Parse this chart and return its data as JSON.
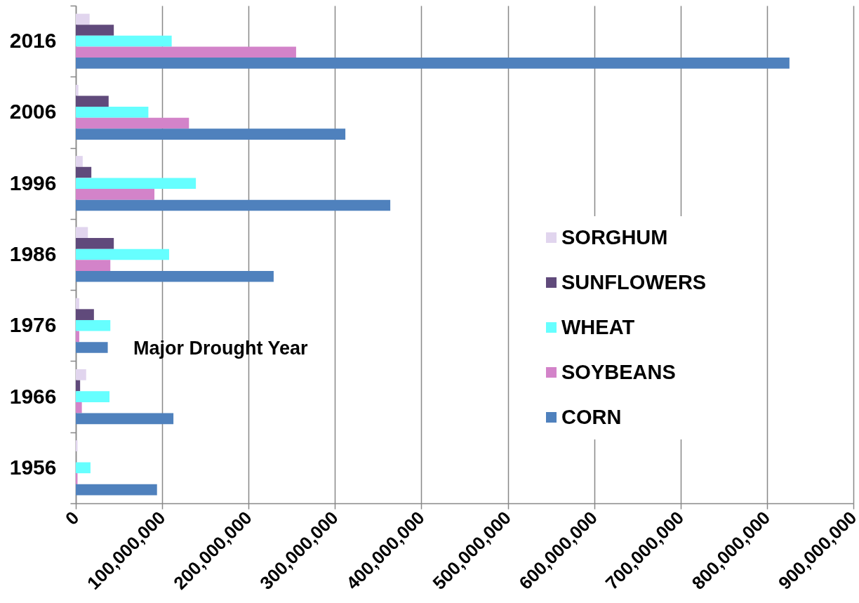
{
  "chart_data": {
    "type": "bar",
    "orientation": "horizontal",
    "categories": [
      "2016",
      "2006",
      "1996",
      "1986",
      "1976",
      "1966",
      "1956"
    ],
    "series": [
      {
        "name": "SORGHUM",
        "color": "#e1d5ee",
        "values": [
          16000000,
          3000000,
          8000000,
          14000000,
          4000000,
          12000000,
          2000000
        ]
      },
      {
        "name": "SUNFLOWERS",
        "color": "#604a7b",
        "values": [
          44000000,
          38000000,
          18000000,
          44000000,
          21000000,
          5000000,
          null
        ]
      },
      {
        "name": "WHEAT",
        "color": "#66ffff",
        "values": [
          111000000,
          84000000,
          139000000,
          108000000,
          40000000,
          39000000,
          17000000
        ]
      },
      {
        "name": "SOYBEANS",
        "color": "#d383c9",
        "values": [
          255000000,
          131000000,
          91000000,
          40000000,
          4000000,
          7000000,
          2000000
        ]
      },
      {
        "name": "CORN",
        "color": "#4f81bd",
        "values": [
          826000000,
          312000000,
          364000000,
          229000000,
          37000000,
          113000000,
          94000000
        ]
      }
    ],
    "xlim": [
      0,
      900000000
    ],
    "xticks": [
      0,
      {
        "value": 100000000,
        "label": "100,000,000"
      },
      {
        "value": 200000000,
        "label": "200,000,000"
      },
      {
        "value": 300000000,
        "label": "300,000,000"
      },
      {
        "value": 400000000,
        "label": "400,000,000"
      },
      {
        "value": 500000000,
        "label": "500,000,000"
      },
      {
        "value": 600000000,
        "label": "600,000,000"
      },
      {
        "value": 700000000,
        "label": "700,000,000"
      },
      {
        "value": 800000000,
        "label": "800,000,000"
      },
      {
        "value": 900000000,
        "label": "900,000,000"
      }
    ],
    "grid": "x",
    "legend": "right",
    "annotations": [
      "Major Drought Year"
    ]
  }
}
